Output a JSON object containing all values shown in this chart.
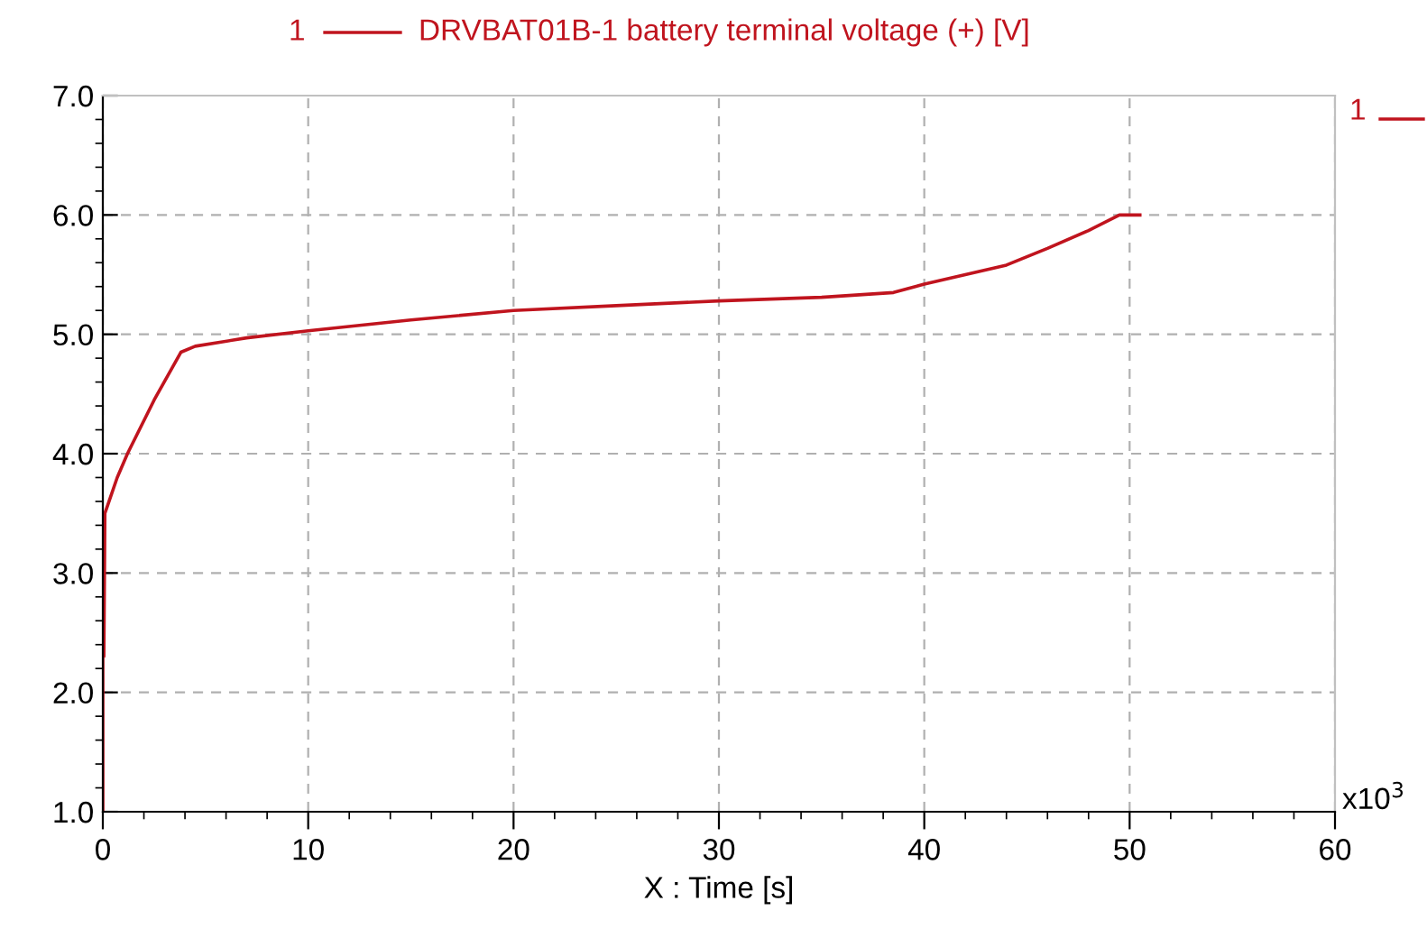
{
  "chart_data": {
    "type": "line",
    "xlabel": "X : Time [s]",
    "series": [
      {
        "name": "DRVBAT01B-1 battery terminal voltage (+) [V]",
        "color": "#c0141e",
        "x": [
          0,
          0,
          0.05,
          0.1,
          0.2,
          0.7,
          1.2,
          2.5,
          3.8,
          4.5,
          7,
          10,
          15,
          20,
          25,
          30,
          35,
          38.5,
          40,
          42,
          44,
          46,
          48,
          49.5,
          50.5
        ],
        "values": [
          1.0,
          3.5,
          2.3,
          3.5,
          3.55,
          3.8,
          4.0,
          4.45,
          4.85,
          4.9,
          4.97,
          5.03,
          5.12,
          5.2,
          5.24,
          5.28,
          5.31,
          5.35,
          5.42,
          5.5,
          5.58,
          5.72,
          5.87,
          6.0,
          6.0
        ]
      }
    ],
    "xlim": [
      0,
      60
    ],
    "xticks": [
      0,
      10,
      20,
      30,
      40,
      50,
      60
    ],
    "ylim": [
      1.0,
      7.0
    ],
    "yticks": [
      {
        "value": 1,
        "label": "1.0"
      },
      {
        "value": 2,
        "label": "2.0"
      },
      {
        "value": 3,
        "label": "3.0"
      },
      {
        "value": 4,
        "label": "4.0"
      },
      {
        "value": 5,
        "label": "5.0"
      },
      {
        "value": 6,
        "label": "6.0"
      },
      {
        "value": 7,
        "label": "7.0"
      }
    ],
    "grid": true,
    "legend": "top",
    "line_style": "solid",
    "annotations": [
      "1",
      "1",
      "x10$^{3}$"
    ]
  }
}
